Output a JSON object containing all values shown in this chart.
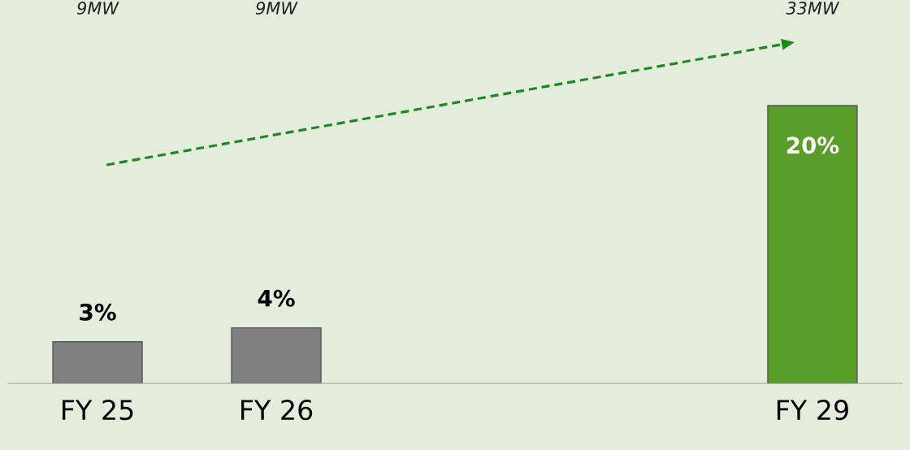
{
  "chart_data": {
    "type": "bar",
    "categories": [
      "FY 25",
      "FY 26",
      null,
      null,
      "FY 29"
    ],
    "values": [
      3,
      4,
      null,
      null,
      20
    ],
    "colors": [
      "#808080",
      "#808080",
      "#808080",
      "#808080",
      "#5a9e2a"
    ],
    "value_labels": [
      "3%",
      "4%",
      null,
      null,
      "20%"
    ],
    "annotations": [
      "9MW",
      "9MW",
      "33MW"
    ],
    "grid": false,
    "legend": false
  }
}
